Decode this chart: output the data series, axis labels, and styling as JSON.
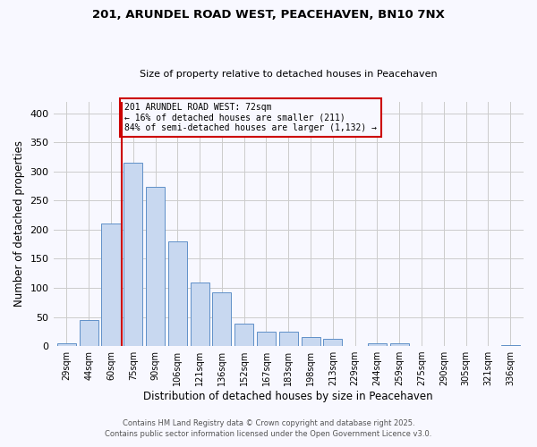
{
  "title1": "201, ARUNDEL ROAD WEST, PEACEHAVEN, BN10 7NX",
  "title2": "Size of property relative to detached houses in Peacehaven",
  "xlabel": "Distribution of detached houses by size in Peacehaven",
  "ylabel": "Number of detached properties",
  "bin_labels": [
    "29sqm",
    "44sqm",
    "60sqm",
    "75sqm",
    "90sqm",
    "106sqm",
    "121sqm",
    "136sqm",
    "152sqm",
    "167sqm",
    "183sqm",
    "198sqm",
    "213sqm",
    "229sqm",
    "244sqm",
    "259sqm",
    "275sqm",
    "290sqm",
    "305sqm",
    "321sqm",
    "336sqm"
  ],
  "bin_values": [
    5,
    44,
    211,
    315,
    274,
    180,
    110,
    93,
    38,
    24,
    24,
    16,
    13,
    0,
    5,
    5,
    0,
    0,
    0,
    0,
    2
  ],
  "bar_color": "#c8d8f0",
  "bar_edge_color": "#6090c8",
  "vline_x_index": 3,
  "vline_color": "#cc0000",
  "annotation_title": "201 ARUNDEL ROAD WEST: 72sqm",
  "annotation_line1": "← 16% of detached houses are smaller (211)",
  "annotation_line2": "84% of semi-detached houses are larger (1,132) →",
  "annotation_box_color": "#cc0000",
  "ylim": [
    0,
    420
  ],
  "yticks": [
    0,
    50,
    100,
    150,
    200,
    250,
    300,
    350,
    400
  ],
  "footnote1": "Contains HM Land Registry data © Crown copyright and database right 2025.",
  "footnote2": "Contains public sector information licensed under the Open Government Licence v3.0.",
  "bg_color": "#f8f8ff"
}
